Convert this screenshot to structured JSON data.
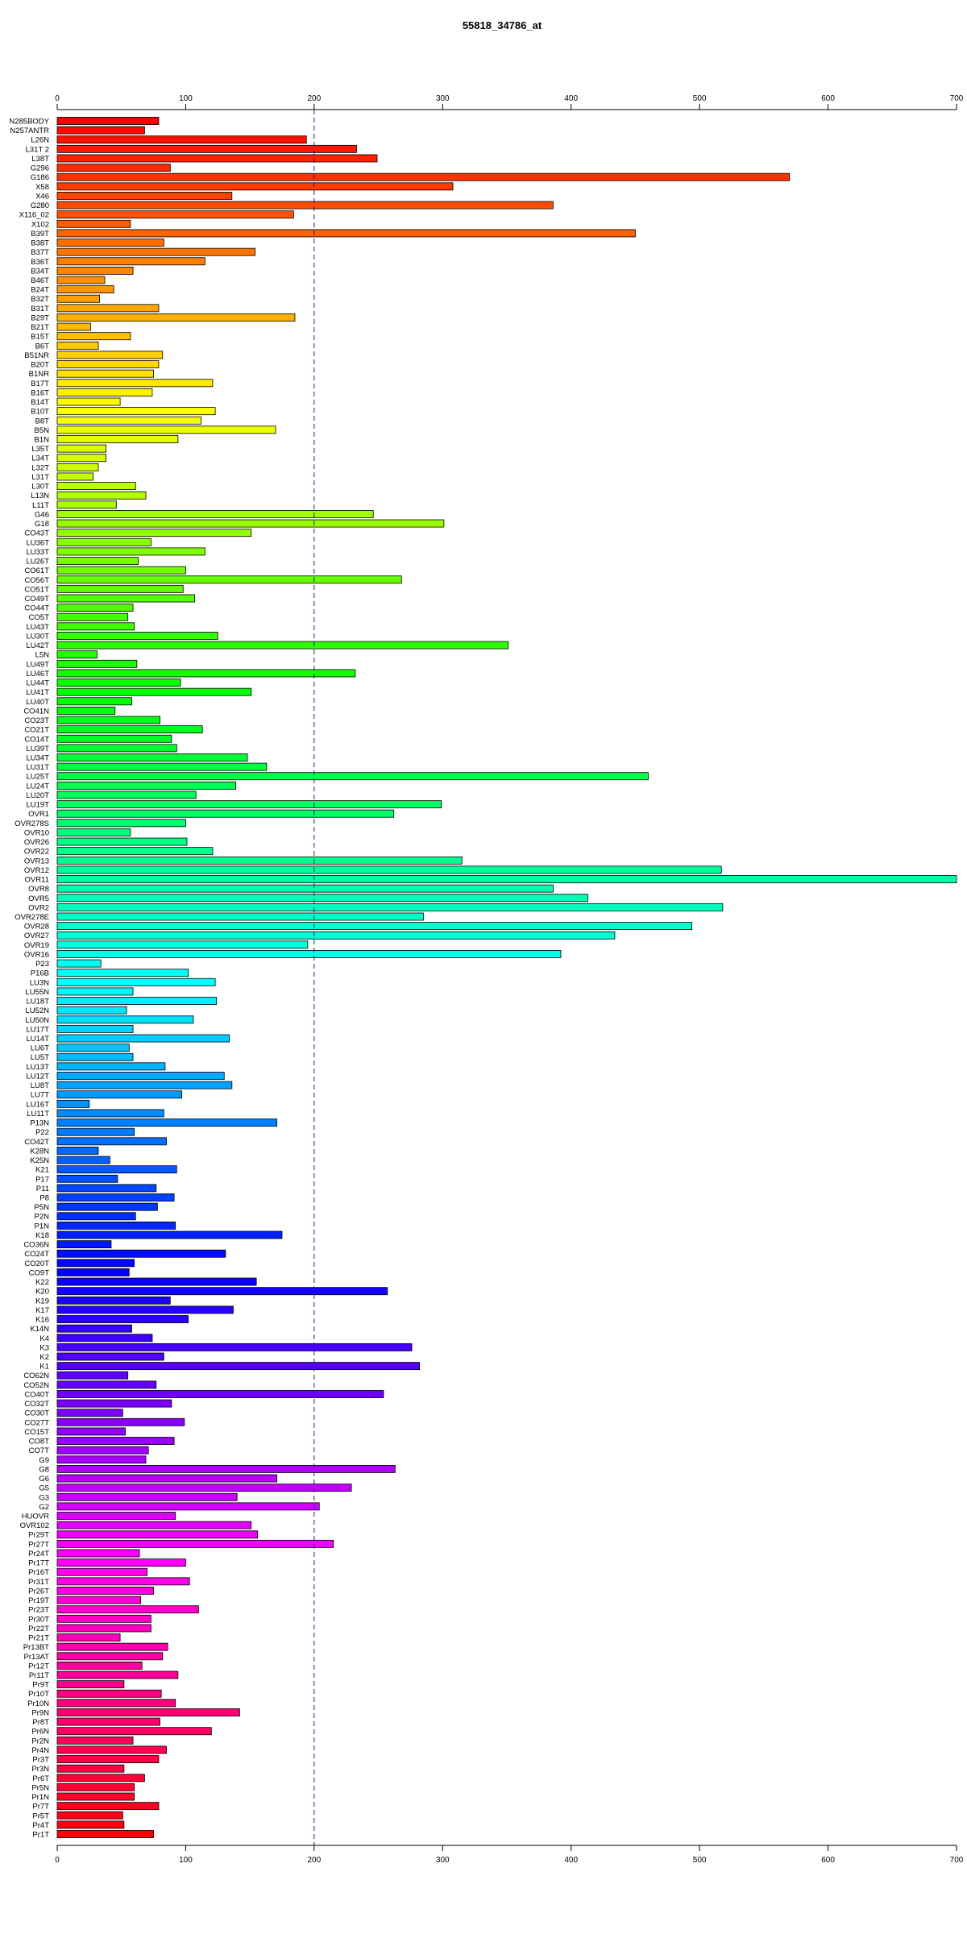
{
  "chart_data": {
    "type": "bar",
    "orientation": "horizontal",
    "title": "55818_34786_at",
    "xlabel": "",
    "ylabel": "",
    "xlim": [
      0,
      700
    ],
    "x_ticks": [
      0,
      100,
      200,
      300,
      400,
      500,
      600,
      700
    ],
    "reference_line": 200,
    "grid": false,
    "legend": "none",
    "categories": [
      "N285BODY",
      "N257ANTR",
      "L26N",
      "L31T 2",
      "L38T",
      "G296",
      "G186",
      "X58",
      "X46",
      "G280",
      "X116_02",
      "X102",
      "B39T",
      "B38T",
      "B37T",
      "B36T",
      "B34T",
      "B46T",
      "B24T",
      "B32T",
      "B31T",
      "B29T",
      "B21T",
      "B15T",
      "B6T",
      "B51NR",
      "B20T",
      "B1NR",
      "B17T",
      "B16T",
      "B14T",
      "B10T",
      "B8T",
      "B5N",
      "B1N",
      "L35T",
      "L34T",
      "L32T",
      "L31T",
      "L30T",
      "L13N",
      "L11T",
      "G46",
      "G18",
      "CO43T",
      "LU36T",
      "LU33T",
      "LU26T",
      "CO61T",
      "CO56T",
      "CO51T",
      "CO49T",
      "CO44T",
      "CO5T",
      "LU43T",
      "LU30T",
      "LU42T",
      "L5N",
      "LU49T",
      "LU46T",
      "LU44T",
      "LU41T",
      "LU40T",
      "CO41N",
      "CO23T",
      "CO21T",
      "CO14T",
      "LU39T",
      "LU34T",
      "LU31T",
      "LU25T",
      "LU24T",
      "LU20T",
      "LU19T",
      "OVR1",
      "OVR278S",
      "OVR10",
      "OVR26",
      "OVR22",
      "OVR13",
      "OVR12",
      "OVR11",
      "OVR8",
      "OVR5",
      "OVR2",
      "OVR278E",
      "OVR28",
      "OVR27",
      "OVR19",
      "OVR16",
      "P23",
      "P16B",
      "LU3N",
      "LU55N",
      "LU18T",
      "LU52N",
      "LU50N",
      "LU17T",
      "LU14T",
      "LU6T",
      "LU5T",
      "LU13T",
      "LU12T",
      "LU8T",
      "LU7T",
      "LU16T",
      "LU11T",
      "P13N",
      "P22",
      "CO42T",
      "K28N",
      "K25N",
      "K21",
      "P17",
      "P11",
      "P8",
      "P5N",
      "P2N",
      "P1N",
      "K18",
      "CO36N",
      "CO24T",
      "CO20T",
      "CO9T",
      "K22",
      "K20",
      "K19",
      "K17",
      "K16",
      "K14N",
      "K4",
      "K3",
      "K2",
      "K1",
      "CO62N",
      "CO52N",
      "CO40T",
      "CO32T",
      "CO30T",
      "CO27T",
      "CO15T",
      "CO8T",
      "CO7T",
      "G9",
      "G8",
      "G6",
      "G5",
      "G3",
      "G2",
      "HUOVR",
      "OVR102",
      "Pr29T",
      "Pr27T",
      "Pr24T",
      "Pr17T",
      "Pr16T",
      "Pr31T",
      "Pr26T",
      "Pr19T",
      "Pr23T",
      "Pr30T",
      "Pr22T",
      "Pr21T",
      "Pr13BT",
      "Pr13AT",
      "Pr12T",
      "Pr11T",
      "Pr9T",
      "Pr10T",
      "Pr10N",
      "Pr9N",
      "Pr8T",
      "Pr6N",
      "Pr2N",
      "Pr4N",
      "Pr3T",
      "Pr3N",
      "Pr6T",
      "Pr5N",
      "Pr1N",
      "Pr7T",
      "Pr5T",
      "Pr4T",
      "Pr1T"
    ],
    "values": [
      79,
      68,
      194,
      233,
      249,
      88,
      570,
      308,
      136,
      386,
      184,
      57,
      450,
      83,
      154,
      115,
      59,
      37,
      44,
      33,
      79,
      185,
      26,
      57,
      32,
      82,
      79,
      75,
      121,
      74,
      49,
      123,
      112,
      170,
      94,
      38,
      38,
      32,
      28,
      61,
      69,
      46,
      246,
      301,
      151,
      73,
      115,
      63,
      100,
      268,
      98,
      107,
      59,
      55,
      60,
      125,
      351,
      31,
      62,
      232,
      96,
      151,
      58,
      45,
      80,
      113,
      89,
      93,
      148,
      163,
      460,
      139,
      108,
      299,
      262,
      100,
      57,
      101,
      121,
      315,
      517,
      700,
      386,
      413,
      518,
      285,
      494,
      434,
      195,
      392,
      34,
      102,
      123,
      59,
      124,
      54,
      106,
      59,
      134,
      56,
      59,
      84,
      130,
      136,
      97,
      25,
      83,
      171,
      60,
      85,
      32,
      41,
      93,
      47,
      77,
      91,
      78,
      61,
      92,
      175,
      42,
      131,
      60,
      56,
      155,
      257,
      88,
      137,
      102,
      58,
      74,
      276,
      83,
      282,
      55,
      77,
      254,
      89,
      51,
      99,
      53,
      91,
      71,
      69,
      263,
      171,
      229,
      140,
      204,
      92,
      151,
      156,
      215,
      64,
      100,
      70,
      103,
      75,
      65,
      110,
      73,
      73,
      49,
      86,
      82,
      66,
      94,
      52,
      81,
      92,
      142,
      80,
      120,
      59,
      85,
      79,
      52,
      68,
      60,
      60,
      79,
      51,
      52,
      75
    ]
  }
}
